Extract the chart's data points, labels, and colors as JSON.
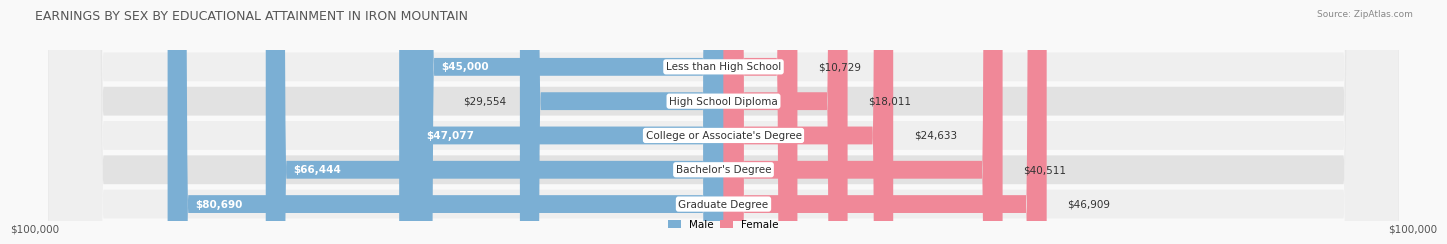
{
  "title": "EARNINGS BY SEX BY EDUCATIONAL ATTAINMENT IN IRON MOUNTAIN",
  "source": "Source: ZipAtlas.com",
  "categories": [
    "Less than High School",
    "High School Diploma",
    "College or Associate's Degree",
    "Bachelor's Degree",
    "Graduate Degree"
  ],
  "male_values": [
    45000,
    29554,
    47077,
    66444,
    80690
  ],
  "female_values": [
    10729,
    18011,
    24633,
    40511,
    46909
  ],
  "male_labels": [
    "$45,000",
    "$29,554",
    "$47,077",
    "$66,444",
    "$80,690"
  ],
  "female_labels": [
    "$10,729",
    "$18,011",
    "$24,633",
    "$40,511",
    "$46,909"
  ],
  "male_color": "#7bafd4",
  "female_color": "#f08898",
  "row_bg_color_light": "#efefef",
  "row_bg_color_dark": "#e2e2e2",
  "axis_max": 100000,
  "xlabel_left": "$100,000",
  "xlabel_right": "$100,000",
  "title_fontsize": 9,
  "label_fontsize": 7.5,
  "tick_fontsize": 7.5,
  "legend_male": "Male",
  "legend_female": "Female",
  "fig_bg": "#f9f9f9"
}
